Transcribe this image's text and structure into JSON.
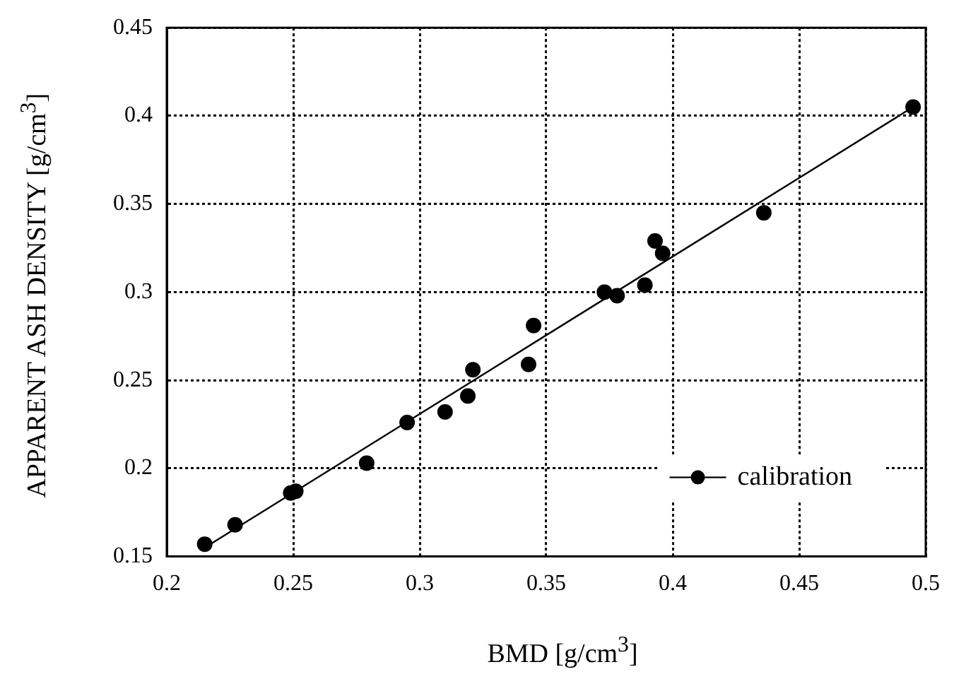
{
  "chart_data": {
    "type": "scatter",
    "xlabel": "BMD [g/cm$^{3}$]",
    "ylabel": "APPARENT ASH DENSITY [g/cm$^{3}$]",
    "xlim": [
      0.2,
      0.5
    ],
    "xticks": [
      0.2,
      0.25,
      0.3,
      0.35,
      0.4,
      0.45,
      0.5
    ],
    "ylim": [
      0.15,
      0.45
    ],
    "yticks": [
      0.15,
      0.2,
      0.25,
      0.3,
      0.35,
      0.4,
      0.45
    ],
    "grid": true,
    "legend": "bottom right",
    "marker": "circle",
    "series": [
      {
        "name": "calibration",
        "color": "#000000",
        "x": [
          0.215,
          0.227,
          0.249,
          0.251,
          0.279,
          0.295,
          0.31,
          0.319,
          0.321,
          0.343,
          0.345,
          0.373,
          0.378,
          0.389,
          0.393,
          0.396,
          0.436,
          0.495
        ],
        "values": [
          0.157,
          0.168,
          0.186,
          0.187,
          0.203,
          0.226,
          0.232,
          0.241,
          0.256,
          0.259,
          0.281,
          0.3,
          0.298,
          0.304,
          0.329,
          0.322,
          0.345,
          0.405
        ]
      },
      {
        "type": "line",
        "color": "#000000",
        "marker": "none",
        "line_style": "solid",
        "x": [
          0.215,
          0.495
        ],
        "values": [
          0.155,
          0.405
        ]
      }
    ]
  }
}
